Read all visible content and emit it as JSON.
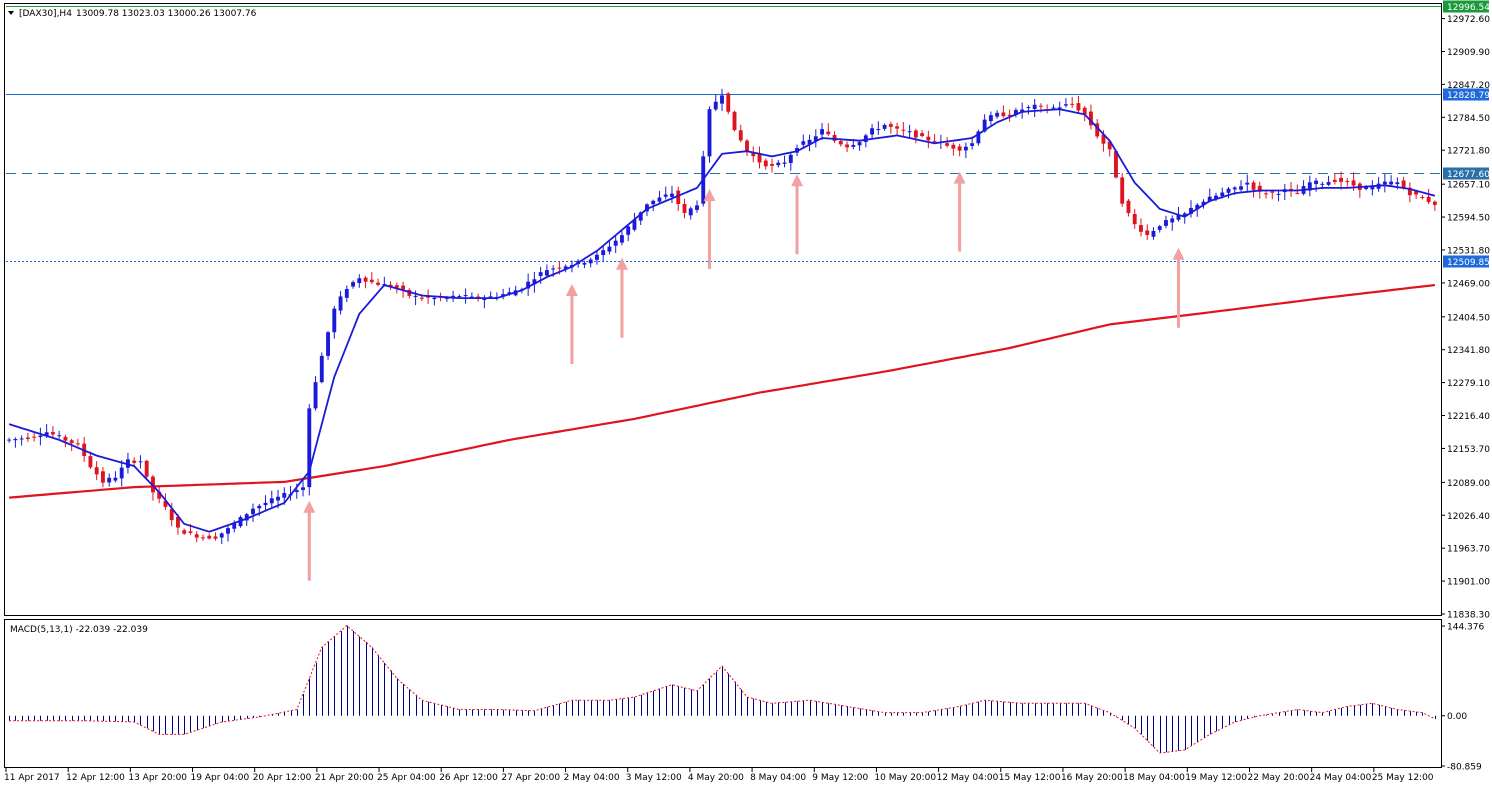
{
  "header": {
    "symbol": "[DAX30],H4",
    "ohlc": "13009.78 13023.03 13000.26 13007.76"
  },
  "macd_header": "MACD(5,13,1) -22.039 -22.039",
  "price_scale": {
    "labels": [
      "12972.60",
      "12909.90",
      "12847.20",
      "12784.50",
      "12721.80",
      "12657.10",
      "12594.50",
      "12531.80",
      "12469.00",
      "12404.50",
      "12341.80",
      "12279.10",
      "12216.40",
      "12153.70",
      "12089.00",
      "12026.40",
      "11963.70",
      "11901.00",
      "11838.30"
    ]
  },
  "macd_scale": {
    "labels": [
      "144.376",
      "0.00",
      "-80.859"
    ]
  },
  "levels": [
    {
      "value": "12996.54",
      "style": "solid",
      "color": "#1a9a3c"
    },
    {
      "value": "12828.79",
      "style": "solid",
      "color": "#1e6ad8"
    },
    {
      "value": "12677.60",
      "style": "dashed",
      "color": "#2a6fa8"
    },
    {
      "value": "12509.85",
      "style": "dotted",
      "color": "#1e6ad8"
    }
  ],
  "time_axis": [
    "11 Apr 2017",
    "12 Apr 12:00",
    "13 Apr 20:00",
    "19 Apr 04:00",
    "20 Apr 12:00",
    "21 Apr 20:00",
    "25 Apr 04:00",
    "26 Apr 12:00",
    "27 Apr 20:00",
    "2 May 04:00",
    "3 May 12:00",
    "4 May 20:00",
    "8 May 04:00",
    "9 May 12:00",
    "10 May 20:00",
    "12 May 04:00",
    "15 May 12:00",
    "16 May 20:00",
    "18 May 04:00",
    "19 May 12:00",
    "22 May 20:00",
    "24 May 04:00",
    "25 May 12:00"
  ],
  "colors": {
    "bull": "#1a1ad8",
    "bear": "#e0141e",
    "fast_ma": "#1a1ad8",
    "slow_ma": "#e0141e",
    "arrow": "#f2a0a0",
    "macd": "#000080",
    "signal": "#e0141e"
  },
  "chart_data": {
    "type": "candlestick",
    "symbol": "DAX30",
    "timeframe": "H4",
    "ylim": [
      11838.3,
      12996.54
    ],
    "anchors": [
      [
        0,
        12170
      ],
      [
        3,
        12175
      ],
      [
        6,
        12185
      ],
      [
        9,
        12170
      ],
      [
        11,
        12160
      ],
      [
        13,
        12120
      ],
      [
        15,
        12090
      ],
      [
        17,
        12100
      ],
      [
        19,
        12130
      ],
      [
        21,
        12130
      ],
      [
        23,
        12070
      ],
      [
        25,
        12040
      ],
      [
        27,
        12000
      ],
      [
        29,
        11990
      ],
      [
        31,
        11985
      ],
      [
        33,
        11985
      ],
      [
        35,
        12000
      ],
      [
        37,
        12020
      ],
      [
        39,
        12040
      ],
      [
        41,
        12050
      ],
      [
        43,
        12060
      ],
      [
        45,
        12070
      ],
      [
        47,
        12080
      ],
      [
        48,
        12230
      ],
      [
        50,
        12330
      ],
      [
        52,
        12420
      ],
      [
        54,
        12460
      ],
      [
        56,
        12480
      ],
      [
        58,
        12470
      ],
      [
        60,
        12465
      ],
      [
        62,
        12460
      ],
      [
        64,
        12445
      ],
      [
        66,
        12440
      ],
      [
        68,
        12440
      ],
      [
        70,
        12440
      ],
      [
        72,
        12445
      ],
      [
        74,
        12440
      ],
      [
        76,
        12440
      ],
      [
        78,
        12445
      ],
      [
        80,
        12450
      ],
      [
        82,
        12460
      ],
      [
        84,
        12480
      ],
      [
        86,
        12495
      ],
      [
        88,
        12500
      ],
      [
        90,
        12505
      ],
      [
        92,
        12510
      ],
      [
        94,
        12520
      ],
      [
        96,
        12540
      ],
      [
        98,
        12560
      ],
      [
        100,
        12590
      ],
      [
        102,
        12620
      ],
      [
        104,
        12630
      ],
      [
        106,
        12640
      ],
      [
        108,
        12600
      ],
      [
        110,
        12620
      ],
      [
        112,
        12800
      ],
      [
        114,
        12830
      ],
      [
        116,
        12760
      ],
      [
        118,
        12720
      ],
      [
        120,
        12700
      ],
      [
        122,
        12690
      ],
      [
        124,
        12700
      ],
      [
        126,
        12730
      ],
      [
        128,
        12740
      ],
      [
        130,
        12760
      ],
      [
        132,
        12740
      ],
      [
        134,
        12730
      ],
      [
        136,
        12740
      ],
      [
        138,
        12760
      ],
      [
        140,
        12770
      ],
      [
        142,
        12760
      ],
      [
        144,
        12755
      ],
      [
        146,
        12745
      ],
      [
        148,
        12740
      ],
      [
        150,
        12730
      ],
      [
        152,
        12725
      ],
      [
        154,
        12735
      ],
      [
        156,
        12780
      ],
      [
        158,
        12790
      ],
      [
        160,
        12790
      ],
      [
        162,
        12800
      ],
      [
        164,
        12805
      ],
      [
        166,
        12800
      ],
      [
        168,
        12805
      ],
      [
        170,
        12810
      ],
      [
        172,
        12790
      ],
      [
        174,
        12750
      ],
      [
        176,
        12720
      ],
      [
        178,
        12620
      ],
      [
        180,
        12580
      ],
      [
        182,
        12560
      ],
      [
        184,
        12580
      ],
      [
        186,
        12590
      ],
      [
        188,
        12600
      ],
      [
        190,
        12620
      ],
      [
        192,
        12630
      ],
      [
        194,
        12640
      ],
      [
        196,
        12650
      ],
      [
        198,
        12660
      ],
      [
        200,
        12640
      ],
      [
        202,
        12640
      ],
      [
        204,
        12645
      ],
      [
        206,
        12640
      ],
      [
        208,
        12660
      ],
      [
        210,
        12660
      ],
      [
        212,
        12665
      ],
      [
        214,
        12660
      ],
      [
        216,
        12650
      ],
      [
        218,
        12650
      ],
      [
        220,
        12660
      ],
      [
        222,
        12660
      ],
      [
        224,
        12640
      ],
      [
        226,
        12630
      ],
      [
        228,
        12620
      ]
    ],
    "fast_ma_anchors": [
      [
        0,
        12200
      ],
      [
        8,
        12170
      ],
      [
        14,
        12140
      ],
      [
        20,
        12120
      ],
      [
        24,
        12070
      ],
      [
        28,
        12010
      ],
      [
        32,
        11995
      ],
      [
        38,
        12020
      ],
      [
        44,
        12050
      ],
      [
        48,
        12110
      ],
      [
        52,
        12290
      ],
      [
        56,
        12410
      ],
      [
        60,
        12465
      ],
      [
        66,
        12445
      ],
      [
        72,
        12440
      ],
      [
        78,
        12440
      ],
      [
        82,
        12455
      ],
      [
        86,
        12480
      ],
      [
        90,
        12500
      ],
      [
        94,
        12530
      ],
      [
        98,
        12570
      ],
      [
        102,
        12610
      ],
      [
        106,
        12630
      ],
      [
        110,
        12650
      ],
      [
        114,
        12715
      ],
      [
        118,
        12720
      ],
      [
        122,
        12710
      ],
      [
        126,
        12720
      ],
      [
        130,
        12745
      ],
      [
        136,
        12740
      ],
      [
        142,
        12750
      ],
      [
        148,
        12735
      ],
      [
        154,
        12745
      ],
      [
        158,
        12775
      ],
      [
        162,
        12795
      ],
      [
        168,
        12800
      ],
      [
        172,
        12790
      ],
      [
        176,
        12740
      ],
      [
        180,
        12660
      ],
      [
        184,
        12610
      ],
      [
        188,
        12595
      ],
      [
        192,
        12625
      ],
      [
        196,
        12640
      ],
      [
        200,
        12645
      ],
      [
        206,
        12645
      ],
      [
        210,
        12650
      ],
      [
        214,
        12650
      ],
      [
        220,
        12655
      ],
      [
        224,
        12648
      ],
      [
        228,
        12635
      ]
    ],
    "slow_ma_anchors": [
      [
        0,
        12060
      ],
      [
        20,
        12080
      ],
      [
        44,
        12090
      ],
      [
        60,
        12120
      ],
      [
        80,
        12170
      ],
      [
        100,
        12210
      ],
      [
        120,
        12260
      ],
      [
        140,
        12300
      ],
      [
        160,
        12345
      ],
      [
        176,
        12390
      ],
      [
        190,
        12410
      ],
      [
        210,
        12440
      ],
      [
        228,
        12465
      ]
    ],
    "macd_anchors": [
      [
        0,
        -8
      ],
      [
        12,
        -8
      ],
      [
        20,
        -10
      ],
      [
        24,
        -30
      ],
      [
        28,
        -30
      ],
      [
        34,
        -10
      ],
      [
        40,
        -2
      ],
      [
        46,
        10
      ],
      [
        50,
        110
      ],
      [
        54,
        145
      ],
      [
        58,
        110
      ],
      [
        62,
        60
      ],
      [
        66,
        25
      ],
      [
        72,
        10
      ],
      [
        78,
        10
      ],
      [
        84,
        8
      ],
      [
        90,
        25
      ],
      [
        96,
        25
      ],
      [
        100,
        30
      ],
      [
        106,
        50
      ],
      [
        110,
        40
      ],
      [
        114,
        80
      ],
      [
        118,
        30
      ],
      [
        122,
        20
      ],
      [
        128,
        25
      ],
      [
        134,
        15
      ],
      [
        140,
        5
      ],
      [
        146,
        5
      ],
      [
        152,
        15
      ],
      [
        156,
        25
      ],
      [
        162,
        20
      ],
      [
        166,
        20
      ],
      [
        172,
        20
      ],
      [
        176,
        5
      ],
      [
        180,
        -20
      ],
      [
        184,
        -60
      ],
      [
        188,
        -55
      ],
      [
        192,
        -30
      ],
      [
        196,
        -10
      ],
      [
        200,
        0
      ],
      [
        206,
        10
      ],
      [
        210,
        5
      ],
      [
        214,
        15
      ],
      [
        218,
        20
      ],
      [
        222,
        10
      ],
      [
        226,
        5
      ],
      [
        228,
        -5
      ]
    ],
    "candles_count": 229,
    "arrows": [
      {
        "candle": 48,
        "price": 12054
      },
      {
        "candle": 90,
        "price": 12467
      },
      {
        "candle": 98,
        "price": 12517
      },
      {
        "candle": 112,
        "price": 12648
      },
      {
        "candle": 126,
        "price": 12676
      },
      {
        "candle": 152,
        "price": 12681
      },
      {
        "candle": 187,
        "price": 12536
      }
    ]
  }
}
